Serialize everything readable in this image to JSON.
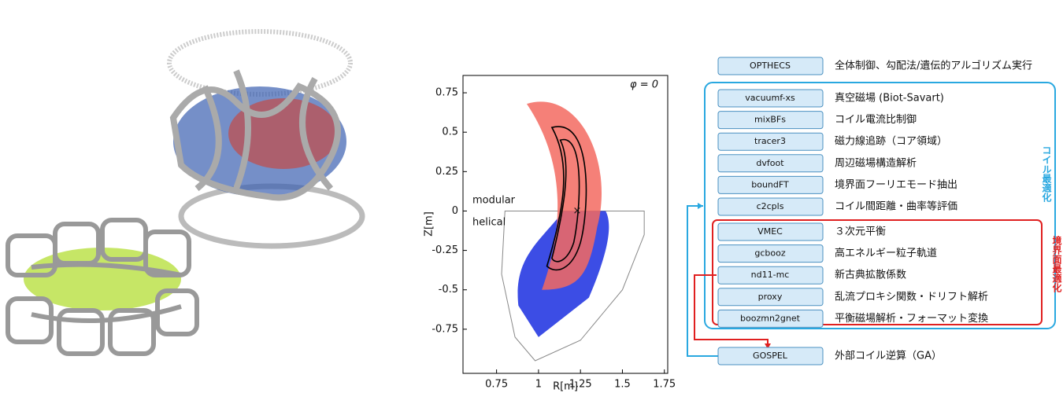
{
  "plot": {
    "phi_label": "φ = 0",
    "xlabel": "R[m]",
    "ylabel": "Z[m]",
    "region_upper": "modular",
    "region_lower": "helical",
    "xlim": [
      0.55,
      1.77
    ],
    "ylim": [
      -1.03,
      0.86
    ],
    "xticks": [
      0.75,
      1,
      1.25,
      1.5,
      1.75
    ],
    "yticks": [
      0.75,
      0.5,
      0.25,
      0,
      -0.25,
      -0.5,
      -0.75
    ]
  },
  "workflow": {
    "top": {
      "name": "OPTHECS",
      "desc": "全体制御、勾配法/遺伝的アルゴリズム実行"
    },
    "coil_group_label": "コイル最適化",
    "boundary_group_label": "境界面最適化",
    "coil_modules": [
      {
        "name": "vacuumf-xs",
        "desc": "真空磁場 (Biot-Savart)"
      },
      {
        "name": "mixBFs",
        "desc": "コイル電流比制御"
      },
      {
        "name": "tracer3",
        "desc": "磁力線追跡（コア領域）"
      },
      {
        "name": "dvfoot",
        "desc": "周辺磁場構造解析"
      },
      {
        "name": "boundFT",
        "desc": "境界面フーリエモード抽出"
      },
      {
        "name": "c2cpls",
        "desc": "コイル間距離・曲率等評価"
      }
    ],
    "boundary_modules": [
      {
        "name": "VMEC",
        "desc": "３次元平衡"
      },
      {
        "name": "gcbooz",
        "desc": "高エネルギー粒子軌道"
      },
      {
        "name": "nd11-mc",
        "desc": "新古典拡散係数"
      },
      {
        "name": "proxy",
        "desc": "乱流プロキシ関数・ドリフト解析"
      },
      {
        "name": "boozmn2gnet",
        "desc": "平衡磁場解析・フォーマット変換"
      }
    ],
    "final": {
      "name": "GOSPEL",
      "desc": "外部コイル逆算（GA）"
    }
  }
}
